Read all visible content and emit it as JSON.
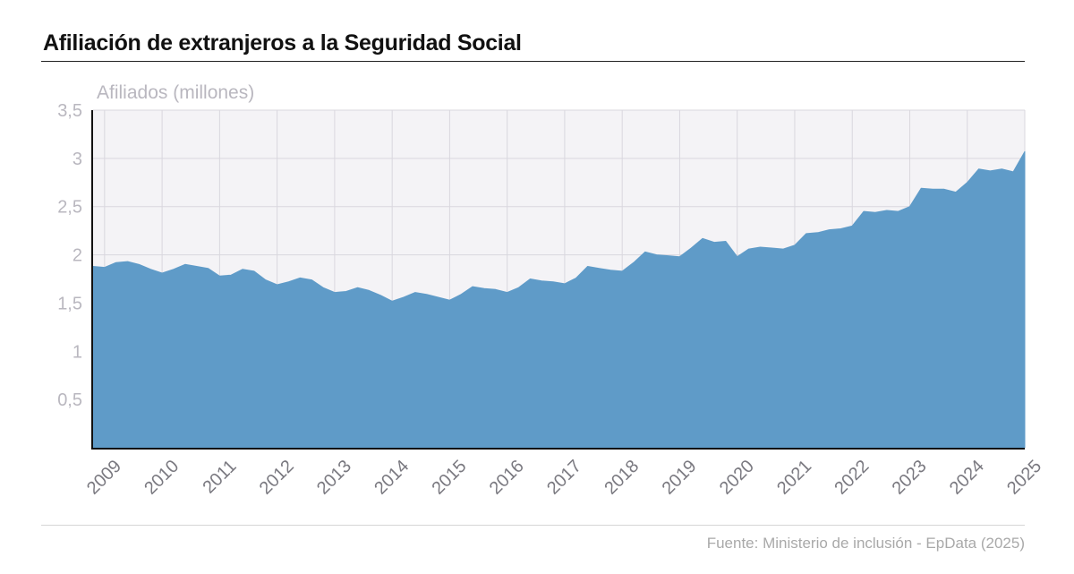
{
  "header": {
    "title": "Afiliación de extranjeros a la Seguridad Social"
  },
  "footer": {
    "source": "Fuente: Ministerio de inclusión - EpData (2025)"
  },
  "colors": {
    "area": "#5f9bc8",
    "plot_bg": "#f4f3f6",
    "grid": "#d9d7de",
    "axis": "#111111",
    "ylabel": "#b9b7bf",
    "xtick": "#7a7980"
  },
  "chart_data": {
    "type": "area",
    "ylabel": "Afiliados (millones)",
    "ylim": [
      0,
      3.5
    ],
    "xlim": [
      2008.8,
      2025.0
    ],
    "yticks": [
      0.5,
      1,
      1.5,
      2,
      2.5,
      3,
      3.5
    ],
    "ytick_labels": [
      "0,5",
      "1",
      "1,5",
      "2",
      "2,5",
      "3",
      "3,5"
    ],
    "xticks": [
      2009,
      2010,
      2011,
      2012,
      2013,
      2014,
      2015,
      2016,
      2017,
      2018,
      2019,
      2020,
      2021,
      2022,
      2023,
      2024,
      2025
    ],
    "xtick_labels": [
      "2009",
      "2010",
      "2011",
      "2012",
      "2013",
      "2014",
      "2015",
      "2016",
      "2017",
      "2018",
      "2019",
      "2020",
      "2021",
      "2022",
      "2023",
      "2024",
      "2025"
    ],
    "grid": true,
    "series": [
      {
        "x": [
          2008.8,
          2009.0,
          2009.2,
          2009.4,
          2009.6,
          2009.8,
          2010.0,
          2010.2,
          2010.4,
          2010.6,
          2010.8,
          2011.0,
          2011.2,
          2011.4,
          2011.6,
          2011.8,
          2012.0,
          2012.2,
          2012.4,
          2012.6,
          2012.8,
          2013.0,
          2013.2,
          2013.4,
          2013.6,
          2013.8,
          2014.0,
          2014.2,
          2014.4,
          2014.6,
          2014.8,
          2015.0,
          2015.2,
          2015.4,
          2015.6,
          2015.8,
          2016.0,
          2016.2,
          2016.4,
          2016.6,
          2016.8,
          2017.0,
          2017.2,
          2017.4,
          2017.6,
          2017.8,
          2018.0,
          2018.2,
          2018.4,
          2018.6,
          2018.8,
          2019.0,
          2019.2,
          2019.4,
          2019.6,
          2019.8,
          2020.0,
          2020.2,
          2020.4,
          2020.6,
          2020.8,
          2021.0,
          2021.2,
          2021.4,
          2021.6,
          2021.8,
          2022.0,
          2022.2,
          2022.4,
          2022.6,
          2022.8,
          2023.0,
          2023.2,
          2023.4,
          2023.6,
          2023.8,
          2024.0,
          2024.2,
          2024.4,
          2024.6,
          2024.8,
          2025.0
        ],
        "y": [
          1.88,
          1.87,
          1.92,
          1.93,
          1.9,
          1.85,
          1.81,
          1.85,
          1.9,
          1.88,
          1.86,
          1.78,
          1.79,
          1.85,
          1.83,
          1.74,
          1.69,
          1.72,
          1.76,
          1.74,
          1.66,
          1.61,
          1.62,
          1.66,
          1.63,
          1.58,
          1.52,
          1.56,
          1.61,
          1.59,
          1.56,
          1.53,
          1.59,
          1.67,
          1.65,
          1.64,
          1.61,
          1.66,
          1.75,
          1.73,
          1.72,
          1.7,
          1.76,
          1.88,
          1.86,
          1.84,
          1.83,
          1.92,
          2.03,
          2.0,
          1.99,
          1.98,
          2.07,
          2.17,
          2.13,
          2.14,
          1.98,
          2.06,
          2.08,
          2.07,
          2.06,
          2.1,
          2.22,
          2.23,
          2.26,
          2.27,
          2.3,
          2.45,
          2.44,
          2.46,
          2.45,
          2.5,
          2.69,
          2.68,
          2.68,
          2.65,
          2.75,
          2.89,
          2.87,
          2.89,
          2.86,
          3.07
        ]
      }
    ]
  }
}
